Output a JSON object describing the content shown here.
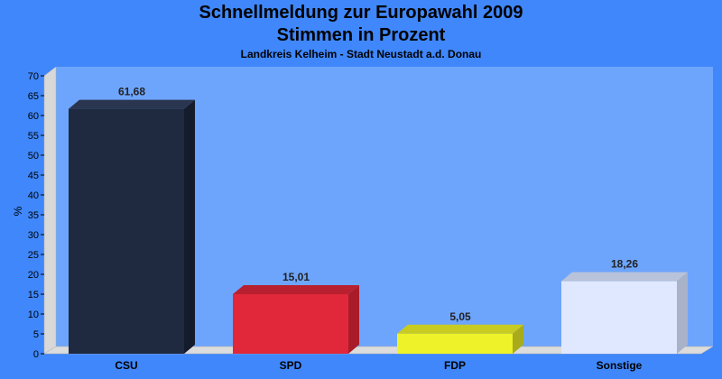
{
  "chart_data": {
    "type": "bar",
    "title": "Schnellmeldung zur Europawahl 2009",
    "title_line2": "Stimmen in Prozent",
    "subtitle": "Landkreis Kelheim - Stadt Neustadt a.d. Donau",
    "ylabel": "%",
    "xlabel": "",
    "ylim": [
      0,
      70
    ],
    "yticks": [
      0,
      5,
      10,
      15,
      20,
      25,
      30,
      35,
      40,
      45,
      50,
      55,
      60,
      65,
      70
    ],
    "grid": false,
    "categories": [
      "CSU",
      "SPD",
      "FDP",
      "Sonstige"
    ],
    "values": [
      61.68,
      15.01,
      5.05,
      18.26
    ],
    "value_labels": [
      "61,68",
      "15,01",
      "5,05",
      "18,26"
    ],
    "colors": [
      "#1f2a40",
      "#e0283a",
      "#eef228",
      "#dfe8ff"
    ],
    "side_colors": [
      "#141c2c",
      "#a81c2a",
      "#a8ac1c",
      "#a8b2c8"
    ],
    "top_colors": [
      "#2a3550",
      "#b82030",
      "#c8cc20",
      "#b8c2da"
    ]
  }
}
